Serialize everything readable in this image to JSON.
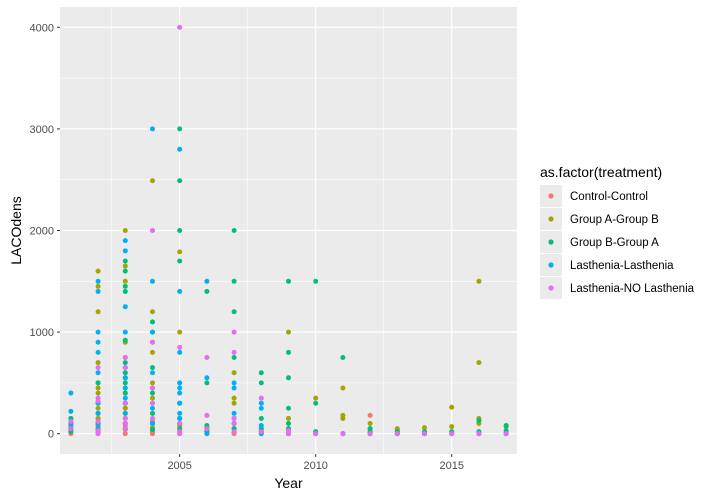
{
  "chart_data": {
    "type": "scatter",
    "xlabel": "Year",
    "ylabel": "LACOdens",
    "xlim": [
      2000.6,
      2017.4
    ],
    "ylim": [
      -200,
      4200
    ],
    "x_ticks": [
      2005,
      2010,
      2015
    ],
    "y_ticks": [
      0,
      1000,
      2000,
      3000,
      4000
    ],
    "grid": true,
    "legend": {
      "title": "as.factor(treatment)",
      "position": "right",
      "entries": [
        "Control-Control",
        "Group A-Group B",
        "Group B-Group A",
        "Lasthenia-Lasthenia",
        "Lasthenia-NO Lasthenia"
      ]
    },
    "series": [
      {
        "name": "Control-Control",
        "color": "#F8766D",
        "points": [
          [
            2001,
            0
          ],
          [
            2001,
            30
          ],
          [
            2001,
            60
          ],
          [
            2001,
            100
          ],
          [
            2002,
            0
          ],
          [
            2002,
            20
          ],
          [
            2002,
            60
          ],
          [
            2002,
            100
          ],
          [
            2002,
            150
          ],
          [
            2003,
            0
          ],
          [
            2003,
            40
          ],
          [
            2003,
            80
          ],
          [
            2003,
            150
          ],
          [
            2003,
            250
          ],
          [
            2004,
            0
          ],
          [
            2004,
            20
          ],
          [
            2004,
            60
          ],
          [
            2004,
            120
          ],
          [
            2005,
            0
          ],
          [
            2005,
            30
          ],
          [
            2005,
            80
          ],
          [
            2006,
            0
          ],
          [
            2006,
            20
          ],
          [
            2007,
            0
          ],
          [
            2007,
            10
          ],
          [
            2007,
            50
          ],
          [
            2008,
            0
          ],
          [
            2008,
            20
          ],
          [
            2009,
            0
          ],
          [
            2009,
            30
          ],
          [
            2010,
            0
          ],
          [
            2011,
            0
          ],
          [
            2012,
            0
          ],
          [
            2012,
            180
          ],
          [
            2013,
            0
          ],
          [
            2014,
            0
          ],
          [
            2015,
            0
          ],
          [
            2016,
            0
          ],
          [
            2017,
            0
          ]
        ]
      },
      {
        "name": "Group A-Group B",
        "color": "#A3A500",
        "points": [
          [
            2001,
            40
          ],
          [
            2001,
            100
          ],
          [
            2001,
            150
          ],
          [
            2002,
            80
          ],
          [
            2002,
            150
          ],
          [
            2002,
            200
          ],
          [
            2002,
            250
          ],
          [
            2002,
            300
          ],
          [
            2002,
            400
          ],
          [
            2002,
            450
          ],
          [
            2002,
            500
          ],
          [
            2002,
            700
          ],
          [
            2002,
            1200
          ],
          [
            2002,
            1450
          ],
          [
            2002,
            1600
          ],
          [
            2003,
            50
          ],
          [
            2003,
            100
          ],
          [
            2003,
            150
          ],
          [
            2003,
            200
          ],
          [
            2003,
            250
          ],
          [
            2003,
            300
          ],
          [
            2003,
            400
          ],
          [
            2003,
            450
          ],
          [
            2003,
            600
          ],
          [
            2003,
            750
          ],
          [
            2003,
            900
          ],
          [
            2003,
            1500
          ],
          [
            2003,
            1650
          ],
          [
            2003,
            2000
          ],
          [
            2004,
            50
          ],
          [
            2004,
            100
          ],
          [
            2004,
            200
          ],
          [
            2004,
            350
          ],
          [
            2004,
            450
          ],
          [
            2004,
            500
          ],
          [
            2004,
            800
          ],
          [
            2004,
            1200
          ],
          [
            2004,
            2490
          ],
          [
            2005,
            80
          ],
          [
            2005,
            100
          ],
          [
            2005,
            150
          ],
          [
            2005,
            500
          ],
          [
            2005,
            1000
          ],
          [
            2005,
            1790
          ],
          [
            2006,
            30
          ],
          [
            2006,
            60
          ],
          [
            2007,
            50
          ],
          [
            2007,
            100
          ],
          [
            2007,
            300
          ],
          [
            2007,
            350
          ],
          [
            2007,
            600
          ],
          [
            2008,
            30
          ],
          [
            2008,
            50
          ],
          [
            2009,
            50
          ],
          [
            2009,
            150
          ],
          [
            2009,
            1000
          ],
          [
            2010,
            350
          ],
          [
            2011,
            150
          ],
          [
            2011,
            180
          ],
          [
            2011,
            450
          ],
          [
            2012,
            50
          ],
          [
            2012,
            100
          ],
          [
            2013,
            30
          ],
          [
            2013,
            50
          ],
          [
            2014,
            60
          ],
          [
            2015,
            70
          ],
          [
            2015,
            260
          ],
          [
            2016,
            100
          ],
          [
            2016,
            150
          ],
          [
            2016,
            700
          ],
          [
            2016,
            1500
          ],
          [
            2017,
            70
          ]
        ]
      },
      {
        "name": "Group B-Group A",
        "color": "#00BF7D",
        "points": [
          [
            2001,
            20
          ],
          [
            2001,
            80
          ],
          [
            2001,
            120
          ],
          [
            2001,
            150
          ],
          [
            2002,
            40
          ],
          [
            2002,
            100
          ],
          [
            2002,
            200
          ],
          [
            2002,
            300
          ],
          [
            2002,
            500
          ],
          [
            2003,
            50
          ],
          [
            2003,
            100
          ],
          [
            2003,
            200
          ],
          [
            2003,
            300
          ],
          [
            2003,
            400
          ],
          [
            2003,
            500
          ],
          [
            2003,
            550
          ],
          [
            2003,
            600
          ],
          [
            2003,
            700
          ],
          [
            2003,
            920
          ],
          [
            2003,
            1400
          ],
          [
            2003,
            1450
          ],
          [
            2003,
            1600
          ],
          [
            2003,
            1700
          ],
          [
            2004,
            40
          ],
          [
            2004,
            100
          ],
          [
            2004,
            200
          ],
          [
            2004,
            300
          ],
          [
            2004,
            400
          ],
          [
            2004,
            650
          ],
          [
            2004,
            1000
          ],
          [
            2004,
            1100
          ],
          [
            2005,
            50
          ],
          [
            2005,
            100
          ],
          [
            2005,
            150
          ],
          [
            2005,
            300
          ],
          [
            2005,
            1700
          ],
          [
            2005,
            2000
          ],
          [
            2005,
            2490
          ],
          [
            2005,
            3000
          ],
          [
            2006,
            20
          ],
          [
            2006,
            50
          ],
          [
            2006,
            80
          ],
          [
            2006,
            500
          ],
          [
            2006,
            1400
          ],
          [
            2007,
            50
          ],
          [
            2007,
            100
          ],
          [
            2007,
            150
          ],
          [
            2007,
            750
          ],
          [
            2007,
            1200
          ],
          [
            2007,
            1500
          ],
          [
            2007,
            2000
          ],
          [
            2008,
            20
          ],
          [
            2008,
            50
          ],
          [
            2008,
            150
          ],
          [
            2008,
            500
          ],
          [
            2008,
            600
          ],
          [
            2009,
            50
          ],
          [
            2009,
            100
          ],
          [
            2009,
            250
          ],
          [
            2009,
            550
          ],
          [
            2009,
            800
          ],
          [
            2009,
            1500
          ],
          [
            2010,
            0
          ],
          [
            2010,
            20
          ],
          [
            2010,
            300
          ],
          [
            2010,
            1500
          ],
          [
            2011,
            0
          ],
          [
            2011,
            750
          ],
          [
            2012,
            0
          ],
          [
            2012,
            20
          ],
          [
            2012,
            50
          ],
          [
            2013,
            0
          ],
          [
            2013,
            20
          ],
          [
            2014,
            0
          ],
          [
            2014,
            20
          ],
          [
            2015,
            0
          ],
          [
            2015,
            20
          ],
          [
            2016,
            0
          ],
          [
            2016,
            20
          ],
          [
            2016,
            130
          ],
          [
            2017,
            0
          ],
          [
            2017,
            30
          ],
          [
            2017,
            80
          ]
        ]
      },
      {
        "name": "Lasthenia-Lasthenia",
        "color": "#00B0F6",
        "points": [
          [
            2001,
            50
          ],
          [
            2001,
            100
          ],
          [
            2001,
            220
          ],
          [
            2001,
            400
          ],
          [
            2002,
            50
          ],
          [
            2002,
            100
          ],
          [
            2002,
            200
          ],
          [
            2002,
            300
          ],
          [
            2002,
            600
          ],
          [
            2002,
            800
          ],
          [
            2002,
            900
          ],
          [
            2002,
            1000
          ],
          [
            2002,
            1400
          ],
          [
            2002,
            1500
          ],
          [
            2003,
            100
          ],
          [
            2003,
            200
          ],
          [
            2003,
            300
          ],
          [
            2003,
            350
          ],
          [
            2003,
            450
          ],
          [
            2003,
            550
          ],
          [
            2003,
            650
          ],
          [
            2003,
            1000
          ],
          [
            2003,
            1250
          ],
          [
            2003,
            1800
          ],
          [
            2003,
            1900
          ],
          [
            2004,
            100
          ],
          [
            2004,
            250
          ],
          [
            2004,
            600
          ],
          [
            2004,
            900
          ],
          [
            2004,
            1000
          ],
          [
            2004,
            1500
          ],
          [
            2004,
            3000
          ],
          [
            2005,
            150
          ],
          [
            2005,
            200
          ],
          [
            2005,
            300
          ],
          [
            2005,
            400
          ],
          [
            2005,
            450
          ],
          [
            2005,
            500
          ],
          [
            2005,
            800
          ],
          [
            2005,
            1400
          ],
          [
            2005,
            2800
          ],
          [
            2006,
            0
          ],
          [
            2006,
            550
          ],
          [
            2006,
            1500
          ],
          [
            2007,
            100
          ],
          [
            2007,
            200
          ],
          [
            2007,
            450
          ],
          [
            2007,
            500
          ],
          [
            2008,
            0
          ],
          [
            2008,
            80
          ],
          [
            2008,
            250
          ],
          [
            2008,
            300
          ],
          [
            2009,
            0
          ],
          [
            2010,
            0
          ],
          [
            2011,
            0
          ],
          [
            2012,
            0
          ],
          [
            2013,
            0
          ],
          [
            2014,
            0
          ],
          [
            2015,
            0
          ],
          [
            2016,
            0
          ],
          [
            2017,
            0
          ]
        ]
      },
      {
        "name": "Lasthenia-NO Lasthenia",
        "color": "#E76BF3",
        "points": [
          [
            2001,
            50
          ],
          [
            2001,
            120
          ],
          [
            2002,
            0
          ],
          [
            2002,
            30
          ],
          [
            2002,
            120
          ],
          [
            2002,
            320
          ],
          [
            2002,
            350
          ],
          [
            2002,
            650
          ],
          [
            2003,
            50
          ],
          [
            2003,
            100
          ],
          [
            2003,
            150
          ],
          [
            2003,
            300
          ],
          [
            2003,
            650
          ],
          [
            2003,
            750
          ],
          [
            2004,
            150
          ],
          [
            2004,
            300
          ],
          [
            2004,
            450
          ],
          [
            2004,
            900
          ],
          [
            2004,
            2000
          ],
          [
            2005,
            0
          ],
          [
            2005,
            20
          ],
          [
            2005,
            100
          ],
          [
            2005,
            850
          ],
          [
            2005,
            4000
          ],
          [
            2006,
            50
          ],
          [
            2006,
            180
          ],
          [
            2006,
            750
          ],
          [
            2007,
            20
          ],
          [
            2007,
            100
          ],
          [
            2007,
            150
          ],
          [
            2007,
            800
          ],
          [
            2007,
            1000
          ],
          [
            2008,
            20
          ],
          [
            2008,
            350
          ],
          [
            2009,
            0
          ],
          [
            2009,
            30
          ],
          [
            2010,
            0
          ],
          [
            2011,
            0
          ],
          [
            2012,
            0
          ],
          [
            2013,
            0
          ],
          [
            2014,
            0
          ],
          [
            2015,
            0
          ],
          [
            2016,
            0
          ],
          [
            2017,
            0
          ]
        ]
      }
    ]
  }
}
